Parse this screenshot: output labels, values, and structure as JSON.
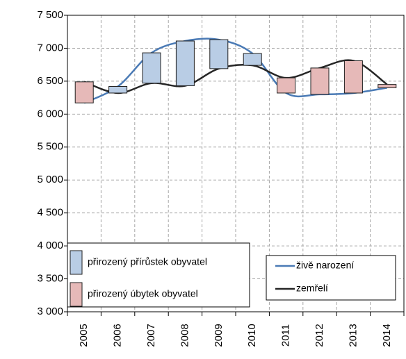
{
  "chart_data": {
    "type": "line_updown",
    "categories": [
      "2005",
      "2006",
      "2007",
      "2008",
      "2009",
      "2010",
      "2011",
      "2012",
      "2013",
      "2014"
    ],
    "series": [
      {
        "name": "živě narození",
        "color": "#4a7ab5",
        "values": [
          6170,
          6420,
          6930,
          7110,
          7130,
          6920,
          6320,
          6300,
          6320,
          6400
        ]
      },
      {
        "name": "zemřelí",
        "color": "#262626",
        "values": [
          6490,
          6320,
          6470,
          6430,
          6690,
          6740,
          6550,
          6700,
          6810,
          6450
        ]
      }
    ],
    "bar_legend": [
      {
        "name": "přirozený přírůstek obyvatel",
        "color": "#b9cde5"
      },
      {
        "name": "přirozený úbytek obyvatel",
        "color": "#e6b9b8"
      }
    ],
    "ylim": [
      3000,
      7500
    ],
    "yticks": [
      {
        "value": 3000,
        "label": "3 000"
      },
      {
        "value": 3500,
        "label": "3 500"
      },
      {
        "value": 4000,
        "label": "4 000"
      },
      {
        "value": 4500,
        "label": "4 500"
      },
      {
        "value": 5000,
        "label": "5 000"
      },
      {
        "value": 5500,
        "label": "5 500"
      },
      {
        "value": 6000,
        "label": "6 000"
      },
      {
        "value": 6500,
        "label": "6 500"
      },
      {
        "value": 7000,
        "label": "7 000"
      },
      {
        "value": 7500,
        "label": "7 500"
      }
    ],
    "grid": true
  }
}
